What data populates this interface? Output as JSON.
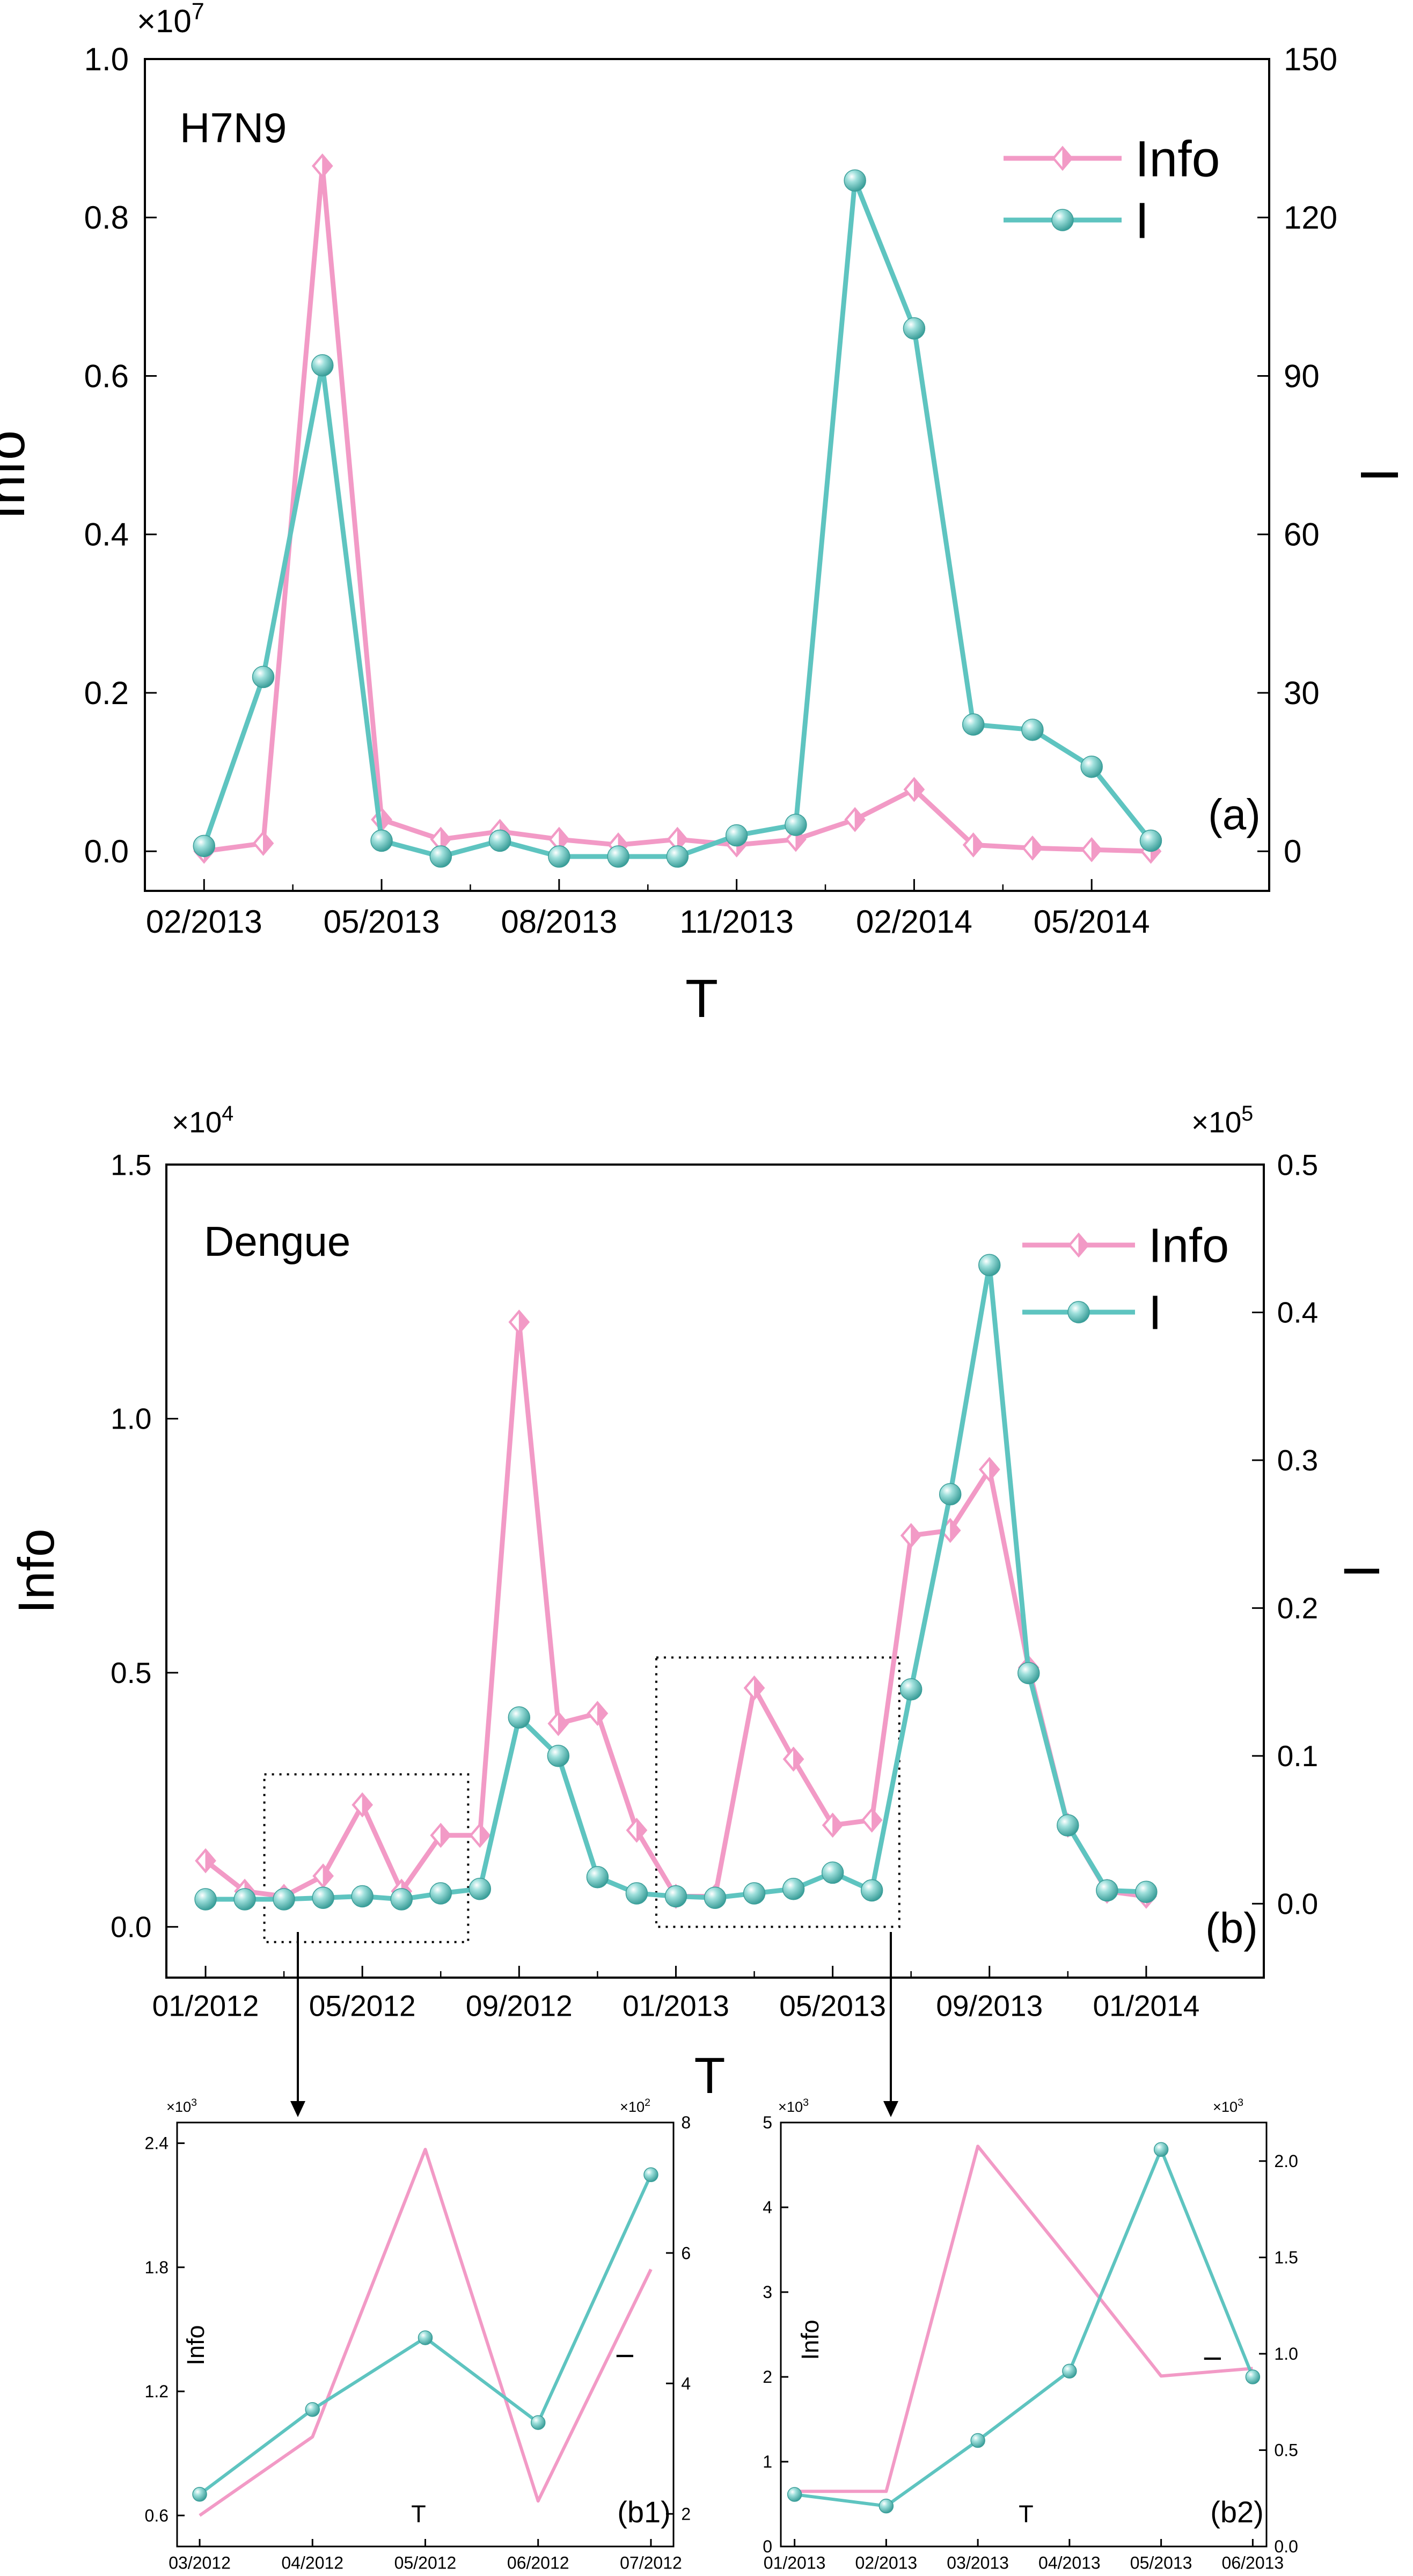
{
  "colors": {
    "info": "#F29AC6",
    "infected": "#5EC4C0",
    "axis": "#000000",
    "frame": "#000000"
  },
  "icons": {
    "info_marker": "half-filled-diamond",
    "infected_marker": "shaded-sphere"
  },
  "chart_data": [
    {
      "id": "a",
      "type": "line",
      "panel_label": "(a)",
      "disease_label": "H7N9",
      "xlabel": "T",
      "ylabel_left": "Info",
      "ylabel_right": "I",
      "left_multiplier": "×10",
      "left_multiplier_exp": "7",
      "right_multiplier": "",
      "right_multiplier_exp": "",
      "x_ticks": [
        "02/2013",
        "05/2013",
        "08/2013",
        "11/2013",
        "02/2014",
        "05/2014"
      ],
      "x_tick_positions": [
        0,
        3,
        6,
        9,
        12,
        15
      ],
      "x_range": [
        -1,
        18
      ],
      "yleft_range": [
        -0.05,
        1.0
      ],
      "yleft_ticks": [
        "0.0",
        "0.2",
        "0.4",
        "0.6",
        "0.8",
        "1.0"
      ],
      "yleft_tick_values": [
        0,
        0.2,
        0.4,
        0.6,
        0.8,
        1.0
      ],
      "yright_range": [
        -7.5,
        150
      ],
      "yright_ticks": [
        "0",
        "30",
        "60",
        "90",
        "120",
        "150"
      ],
      "yright_tick_values": [
        0,
        30,
        60,
        90,
        120,
        150
      ],
      "legend_position": "top-right",
      "x": [
        0,
        1,
        2,
        3,
        4,
        5,
        6,
        7,
        8,
        9,
        10,
        11,
        12,
        13,
        14,
        15,
        16
      ],
      "series": [
        {
          "name": "Info",
          "axis": "left",
          "values": [
            0.0,
            0.01,
            0.865,
            0.04,
            0.015,
            0.025,
            0.015,
            0.008,
            0.015,
            0.008,
            0.015,
            0.04,
            0.078,
            0.008,
            0.004,
            0.002,
            0.0
          ]
        },
        {
          "name": "I",
          "axis": "right",
          "values": [
            1,
            33,
            92,
            2,
            -1,
            2,
            -1,
            -1,
            -1,
            3,
            5,
            127,
            99,
            24,
            23,
            16,
            2
          ]
        }
      ]
    },
    {
      "id": "b",
      "type": "line",
      "panel_label": "(b)",
      "disease_label": "Dengue",
      "xlabel": "T",
      "ylabel_left": "Info",
      "ylabel_right": "I",
      "left_multiplier": "×10",
      "left_multiplier_exp": "4",
      "right_multiplier": "×10",
      "right_multiplier_exp": "5",
      "x_ticks": [
        "01/2012",
        "05/2012",
        "09/2012",
        "01/2013",
        "05/2013",
        "09/2013",
        "01/2014"
      ],
      "x_tick_positions": [
        0,
        4,
        8,
        12,
        16,
        20,
        24
      ],
      "x_range": [
        -1,
        27
      ],
      "yleft_range": [
        -0.1,
        1.5
      ],
      "yleft_ticks": [
        "0.0",
        "0.5",
        "1.0",
        "1.5"
      ],
      "yleft_tick_values": [
        0,
        0.5,
        1.0,
        1.5
      ],
      "yright_range": [
        -0.05,
        0.5
      ],
      "yright_ticks": [
        "0.0",
        "0.1",
        "0.2",
        "0.3",
        "0.4",
        "0.5"
      ],
      "yright_tick_values": [
        0,
        0.1,
        0.2,
        0.3,
        0.4,
        0.5
      ],
      "legend_position": "top-right",
      "x": [
        0,
        1,
        2,
        3,
        4,
        5,
        6,
        7,
        8,
        9,
        10,
        11,
        12,
        13,
        14,
        15,
        16,
        17,
        18,
        19,
        20,
        21,
        22,
        23,
        24
      ],
      "series": [
        {
          "name": "Info",
          "axis": "left",
          "values": [
            0.13,
            0.07,
            0.06,
            0.1,
            0.24,
            0.07,
            0.18,
            0.18,
            1.19,
            0.4,
            0.42,
            0.19,
            0.06,
            0.06,
            0.47,
            0.33,
            0.2,
            0.21,
            0.77,
            0.78,
            0.9,
            0.51,
            0.2,
            0.07,
            0.06
          ]
        },
        {
          "name": "I",
          "axis": "right",
          "values": [
            0.003,
            0.003,
            0.003,
            0.004,
            0.005,
            0.003,
            0.007,
            0.01,
            0.126,
            0.1,
            0.018,
            0.007,
            0.005,
            0.004,
            0.007,
            0.01,
            0.021,
            0.009,
            0.145,
            0.277,
            0.432,
            0.156,
            0.053,
            0.009,
            0.008
          ]
        }
      ],
      "highlight_boxes": [
        {
          "from_x": 1.5,
          "to_x": 6.7,
          "y_bottom": -0.03,
          "y_top": 0.3
        },
        {
          "from_x": 11.5,
          "to_x": 17.7,
          "y_bottom": 0.0,
          "y_top": 0.53
        }
      ]
    },
    {
      "id": "b1",
      "type": "line",
      "panel_label": "(b1)",
      "xlabel": "T",
      "ylabel_left": "Info",
      "ylabel_right": "I",
      "left_multiplier": "×10",
      "left_multiplier_exp": "3",
      "right_multiplier": "×10",
      "right_multiplier_exp": "2",
      "x_ticks": [
        "03/2012",
        "04/2012",
        "05/2012",
        "06/2012",
        "07/2012"
      ],
      "x_tick_positions": [
        0,
        1,
        2,
        3,
        4
      ],
      "x_range": [
        -0.2,
        4.2
      ],
      "yleft_range": [
        0.45,
        2.5
      ],
      "yleft_ticks": [
        "0.6",
        "1.2",
        "1.8",
        "2.4"
      ],
      "yleft_tick_values": [
        0.6,
        1.2,
        1.8,
        2.4
      ],
      "yright_range": [
        1.5,
        8
      ],
      "yright_ticks": [
        "2",
        "4",
        "6",
        "8"
      ],
      "yright_tick_values": [
        2,
        4,
        6,
        8
      ],
      "x": [
        0,
        1,
        2,
        3,
        4
      ],
      "series": [
        {
          "name": "Info",
          "axis": "left",
          "values": [
            0.6,
            0.98,
            2.37,
            0.67,
            1.79
          ]
        },
        {
          "name": "I",
          "axis": "right",
          "values": [
            2.3,
            3.6,
            4.7,
            3.4,
            7.2
          ]
        }
      ]
    },
    {
      "id": "b2",
      "type": "line",
      "panel_label": "(b2)",
      "xlabel": "T",
      "ylabel_left": "Info",
      "ylabel_right": "I",
      "left_multiplier": "×10",
      "left_multiplier_exp": "3",
      "right_multiplier": "×10",
      "right_multiplier_exp": "3",
      "x_ticks": [
        "01/2013",
        "02/2013",
        "03/2013",
        "04/2013",
        "05/2013",
        "06/2013"
      ],
      "x_tick_positions": [
        0,
        1,
        2,
        3,
        4,
        5
      ],
      "x_range": [
        -0.15,
        5.15
      ],
      "yleft_range": [
        0,
        5
      ],
      "yleft_ticks": [
        "0",
        "1",
        "2",
        "3",
        "4",
        "5"
      ],
      "yleft_tick_values": [
        0,
        1,
        2,
        3,
        4,
        5
      ],
      "yright_range": [
        0,
        2.2
      ],
      "yright_ticks": [
        "0.0",
        "0.5",
        "1.0",
        "1.5",
        "2.0"
      ],
      "yright_tick_values": [
        0,
        0.5,
        1.0,
        1.5,
        2.0
      ],
      "x": [
        0,
        1,
        2,
        3,
        4,
        5
      ],
      "series": [
        {
          "name": "Info",
          "axis": "left",
          "values": [
            0.65,
            0.65,
            4.72,
            3.38,
            2.01,
            2.1
          ]
        },
        {
          "name": "I",
          "axis": "right",
          "values": [
            0.27,
            0.21,
            0.55,
            0.91,
            2.06,
            0.88
          ]
        }
      ]
    }
  ]
}
